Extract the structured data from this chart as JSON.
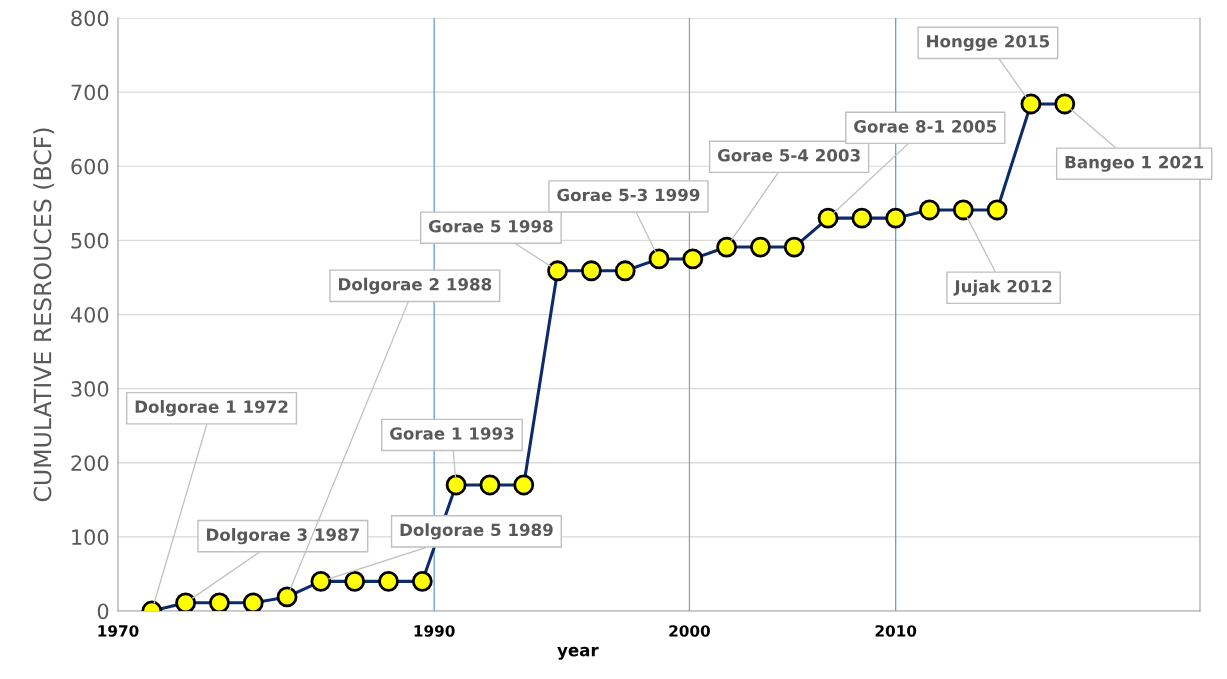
{
  "chart_data": {
    "type": "line",
    "xlabel": "year",
    "ylabel": "CUMULATIVE RESROUCES (BCF)",
    "categories": [
      null,
      null,
      null,
      null,
      null,
      null,
      null,
      null,
      null,
      null,
      null,
      null,
      null,
      null,
      null,
      null,
      null,
      null,
      null,
      null,
      null,
      null,
      null,
      null,
      null,
      null,
      null,
      null
    ],
    "series": [
      {
        "color": "#0d2a6b",
        "values": [
          0,
          11,
          11,
          11,
          19,
          40,
          40,
          40,
          40,
          170,
          170,
          170,
          459,
          459,
          459,
          475,
          475,
          491,
          491,
          491,
          530,
          530,
          530,
          541,
          541,
          541,
          684,
          684
        ]
      }
    ],
    "marker": "circle",
    "line_style": "solid",
    "grid": "y",
    "ylim": [
      0,
      800
    ],
    "yticks": [
      0,
      100,
      200,
      300,
      400,
      500,
      600,
      700,
      800
    ],
    "annotations": [
      "Dolgorae 1 1972",
      "Dolgorae 3 1987",
      "Dolgorae 2 1988",
      "Dolgorae 5 1989",
      "Gorae 1 1993",
      "Gorae 5 1998",
      "Gorae 5-3 1999",
      "Gorae 5-4 2003",
      "Gorae 8-1 2005",
      "Jujak 2012",
      "Hongge 2015",
      "Bangeo 1 2021",
      "1970",
      "1990",
      "2000",
      "2010"
    ]
  }
}
